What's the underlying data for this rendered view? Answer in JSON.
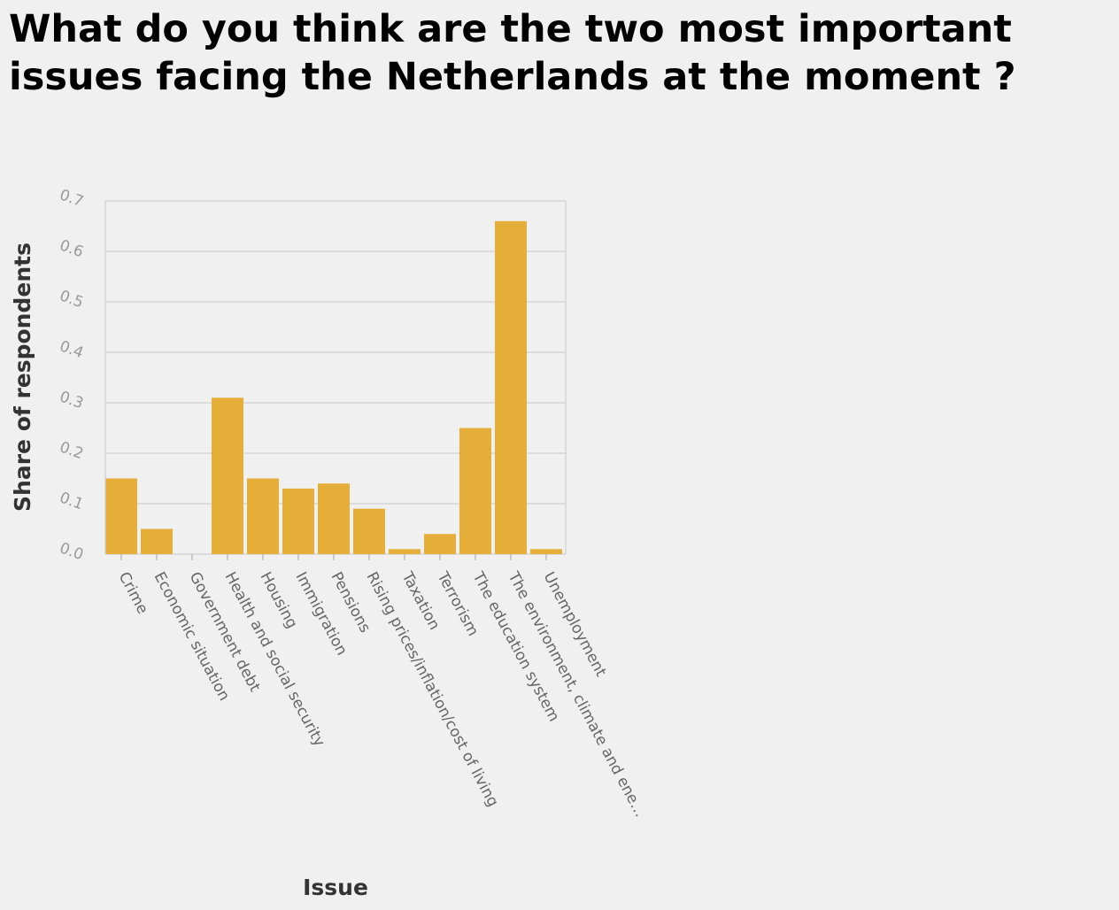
{
  "chart_data": {
    "type": "bar",
    "title": "What do you think are the two most important issues facing the Netherlands at the moment ?",
    "xlabel": "Issue",
    "ylabel": "Share of respondents",
    "ylim": [
      0,
      0.7
    ],
    "yticks": [
      "0.0",
      "0.1",
      "0.2",
      "0.3",
      "0.4",
      "0.5",
      "0.6",
      "0.7"
    ],
    "grid": true,
    "bar_color": "#e5ae38",
    "categories": [
      "Crime",
      "Economic situation",
      "Government debt",
      "Health and social security",
      "Housing",
      "Immigration",
      "Pensions",
      "Rising prices/inflation/cost of living",
      "Taxation",
      "Terrorism",
      "The education system",
      "The environment, climate and ene…",
      "Unemployment"
    ],
    "values": [
      0.15,
      0.05,
      0.0,
      0.31,
      0.15,
      0.13,
      0.14,
      0.09,
      0.01,
      0.04,
      0.25,
      0.66,
      0.01
    ]
  }
}
